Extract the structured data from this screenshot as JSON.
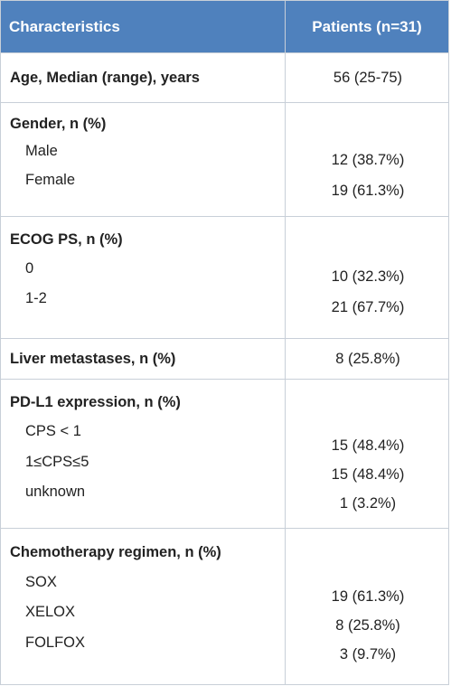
{
  "header": {
    "col1": "Characteristics",
    "col2": "Patients (n=31)"
  },
  "rows": {
    "age": {
      "label": "Age, Median (range), years",
      "value": "56 (25-75)"
    },
    "gender": {
      "label": "Gender, n (%)",
      "items": [
        {
          "label": "Male",
          "value": "12 (38.7%)"
        },
        {
          "label": "Female",
          "value": "19 (61.3%)"
        }
      ]
    },
    "ecog": {
      "label": "ECOG PS, n (%)",
      "items": [
        {
          "label": "0",
          "value": "10 (32.3%)"
        },
        {
          "label": "1-2",
          "value": "21 (67.7%)"
        }
      ]
    },
    "liver": {
      "label": "Liver metastases, n (%)",
      "value": "8 (25.8%)"
    },
    "pdl1": {
      "label": "PD-L1 expression, n (%)",
      "items": [
        {
          "label": "CPS < 1",
          "value": "15 (48.4%)"
        },
        {
          "label": "1≤CPS≤5",
          "value": "15 (48.4%)"
        },
        {
          "label": "unknown",
          "value": "1 (3.2%)"
        }
      ]
    },
    "chemo": {
      "label": "Chemotherapy regimen, n (%)",
      "items": [
        {
          "label": "SOX",
          "value": "19 (61.3%)"
        },
        {
          "label": "XELOX",
          "value": "8 (25.8%)"
        },
        {
          "label": "FOLFOX",
          "value": "3 (9.7%)"
        }
      ]
    }
  },
  "colors": {
    "header_bg": "#4f81bd",
    "border": "#c8cfd8"
  }
}
